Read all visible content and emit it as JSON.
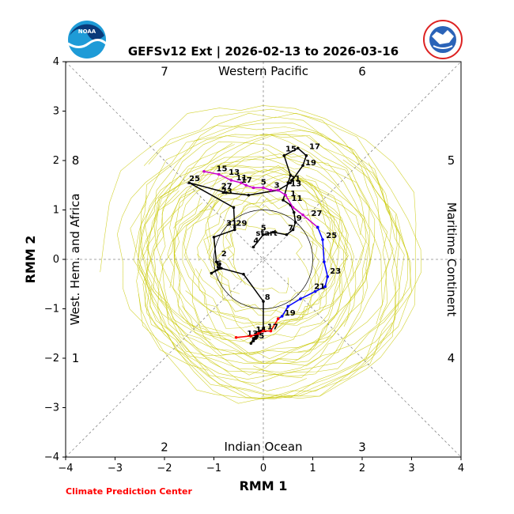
{
  "chart_data": {
    "type": "line",
    "title": "GEFSv12 Ext | 2026-02-13 to 2026-03-16",
    "xlabel": "RMM 1",
    "ylabel": "RMM 2",
    "xlim": [
      -4,
      4
    ],
    "ylim": [
      -4,
      4
    ],
    "xticks": [
      "−4",
      "−3",
      "−2",
      "−1",
      "0",
      "1",
      "2",
      "3",
      "4"
    ],
    "yticks": [
      "−4",
      "−3",
      "−2",
      "−1",
      "0",
      "1",
      "2",
      "3",
      "4"
    ],
    "credit": "Climate Prediction Center",
    "logos": {
      "noaa": "NOAA",
      "nws": "NATIONAL WEATHER SERVICE"
    },
    "regions": {
      "top": "Western Pacific",
      "bottom": "Indian Ocean",
      "left": "West. Hem. and Africa",
      "right": "Maritime Continent"
    },
    "phases": [
      {
        "label": "1",
        "x": -3.8,
        "y": -2.0
      },
      {
        "label": "2",
        "x": -2.0,
        "y": -3.8
      },
      {
        "label": "3",
        "x": 2.0,
        "y": -3.8
      },
      {
        "label": "4",
        "x": 3.8,
        "y": -2.0
      },
      {
        "label": "5",
        "x": 3.8,
        "y": 2.0
      },
      {
        "label": "6",
        "x": 2.0,
        "y": 3.8
      },
      {
        "label": "7",
        "x": -2.0,
        "y": 3.8
      },
      {
        "label": "8",
        "x": -3.8,
        "y": 2.0
      }
    ],
    "series": [
      {
        "name": "Observed",
        "color": "#000000",
        "points": [
          [
            -0.2,
            0.25
          ],
          [
            0.0,
            0.5
          ],
          [
            0.2,
            0.55
          ],
          [
            0.47,
            0.5
          ],
          [
            0.6,
            0.6
          ],
          [
            0.65,
            0.75
          ],
          [
            0.62,
            0.95
          ],
          [
            0.55,
            1.1
          ],
          [
            0.4,
            1.2
          ],
          [
            0.5,
            1.55
          ],
          [
            0.55,
            1.7
          ],
          [
            0.42,
            2.1
          ],
          [
            0.7,
            2.25
          ],
          [
            0.87,
            2.1
          ],
          [
            0.8,
            1.9
          ],
          [
            0.55,
            1.55
          ],
          [
            0.3,
            1.4
          ],
          [
            -0.3,
            1.3
          ],
          [
            -0.75,
            1.35
          ],
          [
            -1.5,
            1.55
          ],
          [
            -0.6,
            1.05
          ],
          [
            -0.58,
            0.65
          ],
          [
            -0.58,
            0.6
          ],
          [
            -1.0,
            0.45
          ],
          [
            -0.95,
            -0.05
          ],
          [
            -0.9,
            -0.18
          ],
          [
            -1.05,
            -0.28
          ],
          [
            -0.85,
            -0.18
          ],
          [
            -0.4,
            -0.3
          ],
          [
            0.0,
            -0.85
          ],
          [
            0.0,
            -1.4
          ],
          [
            -0.05,
            -1.45
          ],
          [
            -0.12,
            -1.55
          ],
          [
            -0.15,
            -1.6
          ],
          [
            -0.2,
            -1.65
          ],
          [
            -0.25,
            -1.7
          ],
          [
            -0.2,
            -1.6
          ],
          [
            -0.15,
            -1.55
          ],
          [
            -0.1,
            -1.5
          ],
          [
            -0.05,
            -1.45
          ]
        ],
        "labels": [
          {
            "t": "start",
            "x": -0.2,
            "y": 0.45
          },
          {
            "t": "4",
            "x": -0.25,
            "y": 0.3
          },
          {
            "t": "5",
            "x": -0.1,
            "y": 0.55
          },
          {
            "t": "7",
            "x": 0.45,
            "y": 0.55
          },
          {
            "t": "9",
            "x": 0.62,
            "y": 0.75
          },
          {
            "t": "11",
            "x": 0.52,
            "y": 1.15
          },
          {
            "t": "1",
            "x": 0.5,
            "y": 1.25
          },
          {
            "t": "13",
            "x": 0.5,
            "y": 1.45
          },
          {
            "t": "21",
            "x": 0.48,
            "y": 1.55
          },
          {
            "t": "15",
            "x": 0.4,
            "y": 2.15
          },
          {
            "t": "17",
            "x": 0.88,
            "y": 2.2
          },
          {
            "t": "19",
            "x": 0.8,
            "y": 1.87
          },
          {
            "t": "23",
            "x": -0.9,
            "y": 1.3
          },
          {
            "t": "25",
            "x": -1.55,
            "y": 1.55
          },
          {
            "t": "27",
            "x": -0.9,
            "y": 1.4
          },
          {
            "t": "29",
            "x": -0.6,
            "y": 0.65
          },
          {
            "t": "31",
            "x": -0.8,
            "y": 0.65
          },
          {
            "t": "2",
            "x": -0.9,
            "y": 0.03
          },
          {
            "t": "6",
            "x": -1.0,
            "y": -0.17
          },
          {
            "t": "4",
            "x": -1.0,
            "y": -0.22
          },
          {
            "t": "8",
            "x": -0.02,
            "y": -0.85
          },
          {
            "t": "11",
            "x": -0.2,
            "y": -1.5
          },
          {
            "t": "15",
            "x": -0.25,
            "y": -1.63
          },
          {
            "t": "13",
            "x": -0.38,
            "y": -1.58
          }
        ]
      },
      {
        "name": "Forecast (purple)",
        "color": "#cc00cc",
        "points": [
          [
            -1.2,
            1.78
          ],
          [
            -0.9,
            1.72
          ],
          [
            -0.65,
            1.6
          ],
          [
            -0.45,
            1.55
          ],
          [
            -0.35,
            1.5
          ],
          [
            -0.2,
            1.45
          ],
          [
            0.0,
            1.45
          ],
          [
            0.15,
            1.4
          ],
          [
            0.3,
            1.4
          ],
          [
            0.45,
            1.3
          ],
          [
            0.6,
            1.05
          ],
          [
            0.8,
            0.9
          ],
          [
            1.1,
            0.65
          ]
        ],
        "labels": [
          {
            "t": "15",
            "x": -1.0,
            "y": 1.75
          },
          {
            "t": "13",
            "x": -0.75,
            "y": 1.68
          },
          {
            "t": "11",
            "x": -0.6,
            "y": 1.57
          },
          {
            "t": "17",
            "x": -0.5,
            "y": 1.52
          },
          {
            "t": "5",
            "x": -0.1,
            "y": 1.48
          },
          {
            "t": "3",
            "x": 0.17,
            "y": 1.42
          },
          {
            "t": "27",
            "x": 0.92,
            "y": 0.85
          }
        ]
      },
      {
        "name": "Forecast (blue)",
        "color": "#0000ff",
        "points": [
          [
            1.1,
            0.65
          ],
          [
            1.2,
            0.4
          ],
          [
            1.23,
            -0.05
          ],
          [
            1.3,
            -0.35
          ],
          [
            1.25,
            -0.55
          ],
          [
            1.05,
            -0.65
          ],
          [
            0.75,
            -0.8
          ],
          [
            0.5,
            -0.95
          ],
          [
            0.38,
            -1.15
          ],
          [
            0.3,
            -1.2
          ]
        ],
        "labels": [
          {
            "t": "25",
            "x": 1.22,
            "y": 0.4
          },
          {
            "t": "23",
            "x": 1.3,
            "y": -0.32
          },
          {
            "t": "21",
            "x": 0.98,
            "y": -0.63
          },
          {
            "t": "19",
            "x": 0.38,
            "y": -1.17
          }
        ]
      },
      {
        "name": "Forecast (red)",
        "color": "#ff0000",
        "points": [
          [
            0.3,
            -1.2
          ],
          [
            0.15,
            -1.45
          ],
          [
            0.0,
            -1.45
          ],
          [
            -0.1,
            -1.5
          ],
          [
            -0.25,
            -1.55
          ],
          [
            -0.55,
            -1.58
          ]
        ],
        "labels": [
          {
            "t": "17",
            "x": 0.03,
            "y": -1.45
          }
        ]
      }
    ]
  }
}
